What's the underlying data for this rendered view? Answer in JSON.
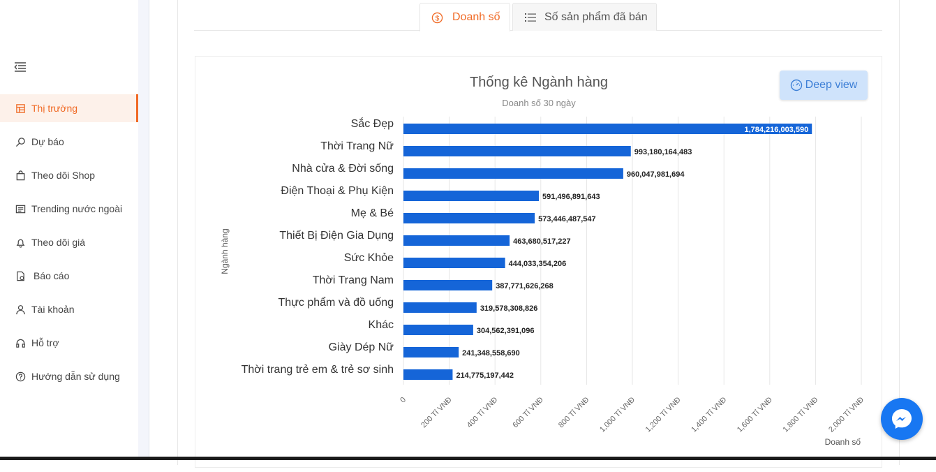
{
  "sidebar": {
    "items": [
      {
        "label": "Thị trường",
        "icon": "store-icon",
        "active": true
      },
      {
        "label": "Dự báo",
        "icon": "search-icon",
        "active": false
      },
      {
        "label": "Theo dõi Shop",
        "icon": "shopping-bag-icon",
        "active": false
      },
      {
        "label": "Trending nước ngoài",
        "icon": "trending-icon",
        "active": false
      },
      {
        "label": "Theo dõi giá",
        "icon": "bell-icon",
        "active": false
      },
      {
        "label": "Báo cáo",
        "icon": "report-icon",
        "active": false
      },
      {
        "label": "Tài khoản",
        "icon": "user-icon",
        "active": false
      },
      {
        "label": "Hỗ trợ",
        "icon": "headset-icon",
        "active": false
      },
      {
        "label": "Hướng dẫn sử dụng",
        "icon": "help-icon",
        "active": false
      }
    ]
  },
  "tabs": {
    "revenue": "Doanh số",
    "sold": "Số sản phẩm đã bán"
  },
  "deep_view": "Deep view",
  "colors": {
    "accent": "#f06a25",
    "bar": "#1565d8",
    "button_bg": "#cfe3fb",
    "messenger": "#1877f2"
  },
  "chart_data": {
    "type": "bar",
    "orientation": "horizontal",
    "title": "Thống kê Ngành hàng",
    "subtitle": "Doanh số 30 ngày",
    "xlabel": "Doanh số",
    "ylabel": "Ngành hàng",
    "categories": [
      "Sắc Đẹp",
      "Thời Trang Nữ",
      "Nhà cửa & Đời sống",
      "Điện Thoại & Phụ Kiện",
      "Mẹ & Bé",
      "Thiết Bị Điện Gia Dụng",
      "Sức Khỏe",
      "Thời Trang Nam",
      "Thực phẩm và đồ uống",
      "Khác",
      "Giày Dép Nữ",
      "Thời trang trẻ em & trẻ sơ sinh"
    ],
    "values": [
      1784216003590,
      993180164483,
      960047981694,
      591496891643,
      573446487547,
      463680517227,
      444033354206,
      387771626268,
      319578308826,
      304562391096,
      241348558690,
      214775197442
    ],
    "value_labels": [
      "1,784,216,003,590",
      "993,180,164,483",
      "960,047,981,694",
      "591,496,891,643",
      "573,446,487,547",
      "463,680,517,227",
      "444,033,354,206",
      "387,771,626,268",
      "319,578,308,826",
      "304,562,391,096",
      "241,348,558,690",
      "214,775,197,442"
    ],
    "xticks": [
      "0",
      "200 Tỉ VNĐ",
      "400 Tỉ VNĐ",
      "600 Tỉ VNĐ",
      "800 Tỉ VNĐ",
      "1,000 Tỉ VNĐ",
      "1,200 Tỉ VNĐ",
      "1,400 Tỉ VNĐ",
      "1,600 Tỉ VNĐ",
      "1,800 Tỉ VNĐ",
      "2,000 Tỉ VNĐ"
    ],
    "xlim": [
      0,
      2000000000000
    ],
    "grid": true
  }
}
